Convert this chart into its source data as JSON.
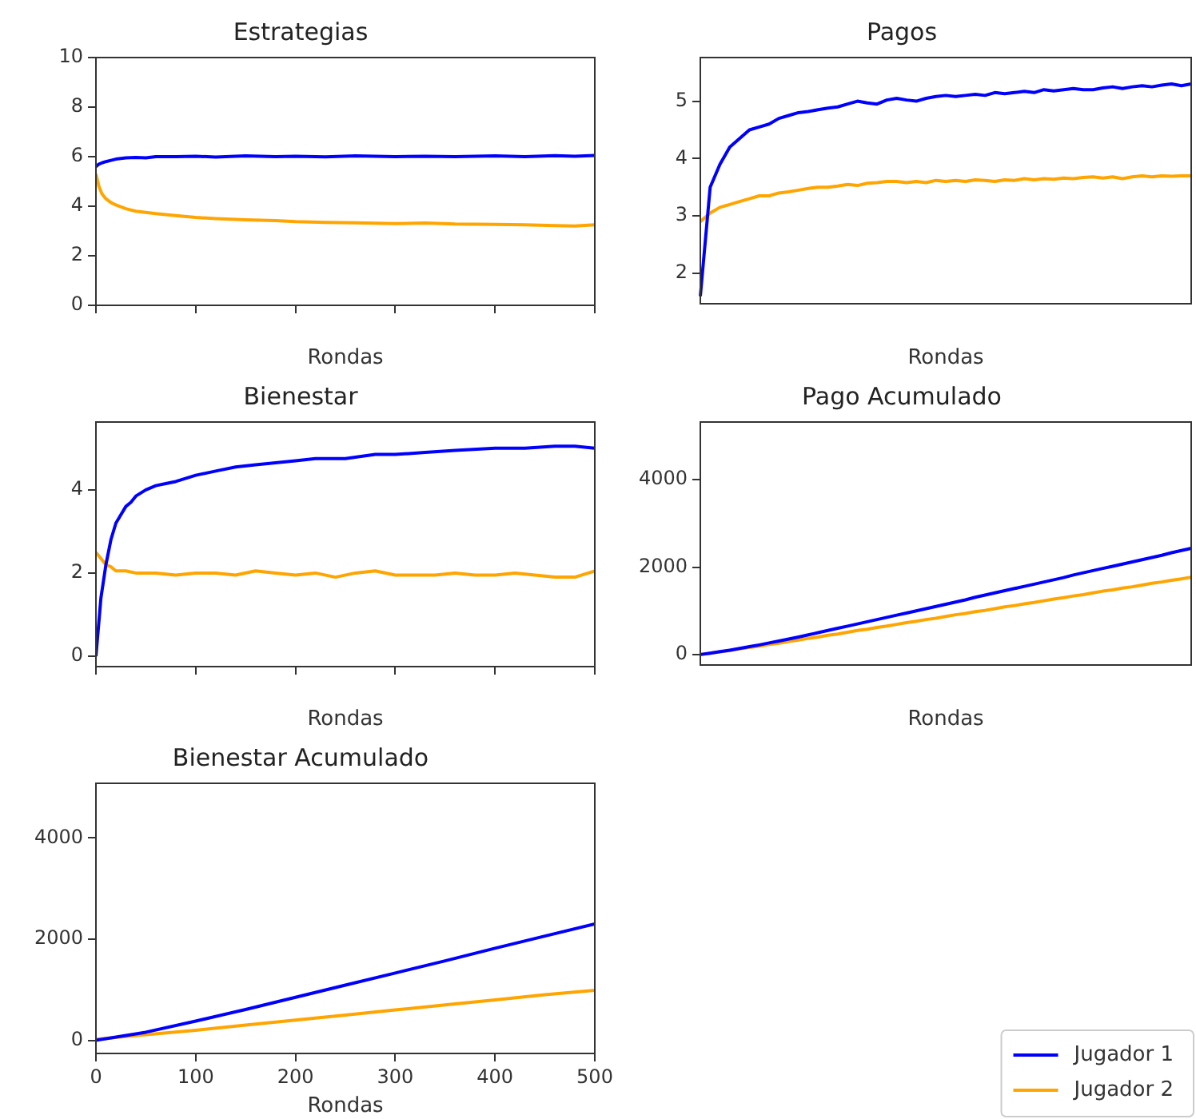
{
  "chart_data": [
    {
      "type": "line",
      "title": "Estrategias",
      "xlabel": "Rondas",
      "xlim": [
        0,
        500
      ],
      "xticks": [
        {
          "value": 0,
          "label": null
        },
        {
          "value": 100,
          "label": null
        },
        {
          "value": 200,
          "label": null
        },
        {
          "value": 300,
          "label": null
        },
        {
          "value": 400,
          "label": null
        },
        {
          "value": 500,
          "label": null
        }
      ],
      "ylim": [
        0,
        10
      ],
      "yticks": [
        0,
        2,
        4,
        6,
        8,
        10
      ],
      "tick_labels": "y",
      "grid": false,
      "series": [
        {
          "color": "#0000ff",
          "x": [
            0,
            3,
            6,
            10,
            15,
            20,
            30,
            40,
            50,
            60,
            80,
            100,
            120,
            150,
            180,
            200,
            230,
            260,
            300,
            330,
            360,
            400,
            430,
            460,
            480,
            500
          ],
          "values": [
            5.6,
            5.7,
            5.75,
            5.8,
            5.85,
            5.9,
            5.95,
            5.97,
            5.95,
            6.0,
            6.0,
            6.02,
            5.98,
            6.03,
            6.0,
            6.02,
            5.99,
            6.03,
            6.0,
            6.02,
            6.0,
            6.03,
            6.0,
            6.04,
            6.02,
            6.05
          ]
        },
        {
          "color": "#ffa500",
          "x": [
            0,
            3,
            6,
            10,
            15,
            20,
            30,
            40,
            50,
            60,
            80,
            100,
            120,
            150,
            180,
            200,
            230,
            260,
            300,
            330,
            360,
            400,
            430,
            460,
            480,
            500
          ],
          "values": [
            5.3,
            4.8,
            4.5,
            4.3,
            4.15,
            4.05,
            3.9,
            3.8,
            3.75,
            3.7,
            3.62,
            3.55,
            3.5,
            3.45,
            3.42,
            3.38,
            3.35,
            3.33,
            3.3,
            3.32,
            3.28,
            3.27,
            3.25,
            3.22,
            3.2,
            3.25
          ]
        }
      ]
    },
    {
      "type": "line",
      "title": "Pagos",
      "xlabel": "Rondas",
      "categories": [
        null,
        null,
        null,
        null,
        null,
        null,
        null,
        null,
        null,
        null,
        null,
        null,
        null,
        null,
        null,
        null,
        null,
        null,
        null,
        null,
        null,
        null,
        null,
        null,
        null,
        null,
        null,
        null,
        null,
        null,
        null,
        null,
        null,
        null,
        null,
        null,
        null,
        null,
        null,
        null,
        null,
        null,
        null,
        null,
        null,
        null,
        null,
        null,
        null,
        null,
        null
      ],
      "ylim": [
        1.47,
        5.76
      ],
      "yticks": [
        2,
        3,
        4,
        5
      ],
      "tick_labels": "y",
      "grid": false,
      "series": [
        {
          "color": "#0000ff",
          "values": [
            1.6,
            3.5,
            3.9,
            4.2,
            4.35,
            4.5,
            4.55,
            4.6,
            4.7,
            4.75,
            4.8,
            4.82,
            4.85,
            4.88,
            4.9,
            4.95,
            5.0,
            4.97,
            4.95,
            5.02,
            5.05,
            5.02,
            5.0,
            5.05,
            5.08,
            5.1,
            5.08,
            5.1,
            5.12,
            5.1,
            5.15,
            5.13,
            5.15,
            5.17,
            5.15,
            5.2,
            5.18,
            5.2,
            5.22,
            5.2,
            5.2,
            5.23,
            5.25,
            5.22,
            5.25,
            5.27,
            5.25,
            5.28,
            5.3,
            5.27,
            5.3
          ]
        },
        {
          "color": "#ffa500",
          "values": [
            2.9,
            3.05,
            3.15,
            3.2,
            3.25,
            3.3,
            3.35,
            3.35,
            3.4,
            3.42,
            3.45,
            3.48,
            3.5,
            3.5,
            3.52,
            3.55,
            3.53,
            3.57,
            3.58,
            3.6,
            3.6,
            3.58,
            3.6,
            3.58,
            3.62,
            3.6,
            3.62,
            3.6,
            3.63,
            3.62,
            3.6,
            3.63,
            3.62,
            3.65,
            3.63,
            3.65,
            3.64,
            3.66,
            3.65,
            3.67,
            3.68,
            3.66,
            3.68,
            3.65,
            3.68,
            3.7,
            3.68,
            3.7,
            3.69,
            3.7,
            3.7
          ]
        }
      ]
    },
    {
      "type": "line",
      "title": "Bienestar",
      "xlabel": "Rondas",
      "xlim": [
        0,
        500
      ],
      "xticks": [
        {
          "value": 0,
          "label": null
        },
        {
          "value": 100,
          "label": null
        },
        {
          "value": 200,
          "label": null
        },
        {
          "value": 300,
          "label": null
        },
        {
          "value": 400,
          "label": null
        },
        {
          "value": 500,
          "label": null
        }
      ],
      "ylim": [
        -0.25,
        5.63
      ],
      "yticks": [
        0,
        2,
        4
      ],
      "tick_labels": "y",
      "grid": false,
      "series": [
        {
          "color": "#0000ff",
          "x": [
            0,
            5,
            10,
            15,
            20,
            25,
            30,
            35,
            40,
            50,
            60,
            70,
            80,
            100,
            120,
            140,
            160,
            180,
            200,
            220,
            250,
            280,
            300,
            330,
            360,
            400,
            430,
            460,
            480,
            500
          ],
          "values": [
            0,
            1.4,
            2.2,
            2.8,
            3.2,
            3.4,
            3.6,
            3.7,
            3.85,
            4.0,
            4.1,
            4.15,
            4.2,
            4.35,
            4.45,
            4.55,
            4.6,
            4.65,
            4.7,
            4.75,
            4.75,
            4.85,
            4.85,
            4.9,
            4.95,
            5.0,
            5.0,
            5.05,
            5.05,
            5.0
          ]
        },
        {
          "color": "#ffa500",
          "x": [
            0,
            5,
            10,
            15,
            20,
            30,
            40,
            60,
            80,
            100,
            120,
            140,
            160,
            180,
            200,
            220,
            240,
            260,
            280,
            300,
            320,
            340,
            360,
            380,
            400,
            420,
            440,
            460,
            480,
            500
          ],
          "values": [
            2.5,
            2.35,
            2.2,
            2.15,
            2.05,
            2.05,
            2.0,
            2.0,
            1.95,
            2.0,
            2.0,
            1.95,
            2.05,
            2.0,
            1.95,
            2.0,
            1.9,
            2.0,
            2.05,
            1.95,
            1.95,
            1.95,
            2.0,
            1.95,
            1.95,
            2.0,
            1.95,
            1.9,
            1.9,
            2.05
          ]
        }
      ]
    },
    {
      "type": "line",
      "title": "Pago Acumulado",
      "xlabel": "Rondas",
      "categories": [
        null,
        null,
        null,
        null,
        null,
        null,
        null,
        null,
        null,
        null,
        null,
        null,
        null,
        null,
        null,
        null,
        null,
        null,
        null,
        null,
        null,
        null,
        null,
        null,
        null,
        null,
        null,
        null,
        null,
        null,
        null,
        null,
        null,
        null,
        null,
        null,
        null,
        null,
        null,
        null,
        null,
        null,
        null,
        null,
        null,
        null,
        null,
        null,
        null,
        null,
        null
      ],
      "ylim": [
        -240,
        5320
      ],
      "yticks": [
        0,
        2000,
        4000
      ],
      "tick_labels": "y",
      "grid": false,
      "series": [
        {
          "color": "#0000ff",
          "values": [
            0,
            30,
            65,
            100,
            140,
            180,
            220,
            265,
            310,
            355,
            400,
            450,
            500,
            550,
            600,
            650,
            700,
            750,
            800,
            850,
            900,
            950,
            1000,
            1050,
            1100,
            1150,
            1200,
            1250,
            1310,
            1360,
            1410,
            1460,
            1510,
            1560,
            1610,
            1660,
            1710,
            1760,
            1820,
            1870,
            1920,
            1970,
            2020,
            2070,
            2120,
            2170,
            2220,
            2270,
            2330,
            2380,
            2430
          ]
        },
        {
          "color": "#ffa500",
          "values": [
            0,
            30,
            60,
            90,
            130,
            160,
            190,
            230,
            260,
            300,
            330,
            370,
            400,
            440,
            470,
            510,
            550,
            580,
            620,
            650,
            690,
            730,
            760,
            800,
            830,
            870,
            910,
            940,
            980,
            1010,
            1050,
            1090,
            1120,
            1160,
            1190,
            1230,
            1270,
            1300,
            1340,
            1370,
            1410,
            1450,
            1480,
            1520,
            1550,
            1590,
            1630,
            1660,
            1700,
            1730,
            1770
          ]
        }
      ]
    },
    {
      "type": "line",
      "title": "Bienestar Acumulado",
      "xlabel": "Rondas",
      "xlim": [
        0,
        500
      ],
      "xticks": [
        0,
        100,
        200,
        300,
        400,
        500
      ],
      "ylim": [
        -260,
        5080
      ],
      "yticks": [
        0,
        2000,
        4000
      ],
      "grid": false,
      "legend": "bottom right",
      "series": [
        {
          "name": "Jugador 1",
          "color": "#0000ff",
          "x": [
            0,
            50,
            100,
            150,
            200,
            250,
            300,
            350,
            400,
            450,
            500
          ],
          "values": [
            0,
            160,
            380,
            610,
            850,
            1090,
            1330,
            1570,
            1820,
            2060,
            2300
          ]
        },
        {
          "name": "Jugador 2",
          "color": "#ffa500",
          "x": [
            0,
            50,
            100,
            150,
            200,
            250,
            300,
            350,
            400,
            450,
            500
          ],
          "values": [
            20,
            110,
            200,
            300,
            400,
            500,
            600,
            700,
            800,
            900,
            990
          ]
        }
      ]
    }
  ]
}
